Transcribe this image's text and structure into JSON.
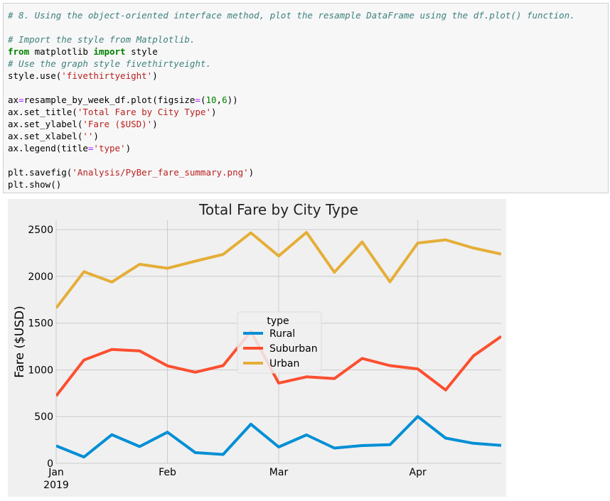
{
  "code": {
    "lines": [
      [
        {
          "t": "# 8. Using the object-oriented interface method, plot the resample DataFrame using the df.plot() function.",
          "c": "comment"
        }
      ],
      [],
      [
        {
          "t": "# Import the style from Matplotlib.",
          "c": "comment"
        }
      ],
      [
        {
          "t": "from",
          "c": "keyword"
        },
        {
          "t": " matplotlib ",
          "c": ""
        },
        {
          "t": "import",
          "c": "keyword"
        },
        {
          "t": " style",
          "c": ""
        }
      ],
      [
        {
          "t": "# Use the graph style fivethirtyeight.",
          "c": "comment"
        }
      ],
      [
        {
          "t": "style.use(",
          "c": ""
        },
        {
          "t": "'fivethirtyeight'",
          "c": "string"
        },
        {
          "t": ")",
          "c": ""
        }
      ],
      [],
      [
        {
          "t": "ax",
          "c": ""
        },
        {
          "t": "=",
          "c": "op"
        },
        {
          "t": "resample_by_week_df.plot(figsize",
          "c": ""
        },
        {
          "t": "=",
          "c": "op"
        },
        {
          "t": "(",
          "c": ""
        },
        {
          "t": "10",
          "c": "number"
        },
        {
          "t": ",",
          "c": ""
        },
        {
          "t": "6",
          "c": "number"
        },
        {
          "t": "))",
          "c": ""
        }
      ],
      [
        {
          "t": "ax.set_title(",
          "c": ""
        },
        {
          "t": "'Total Fare by City Type'",
          "c": "string"
        },
        {
          "t": ")",
          "c": ""
        }
      ],
      [
        {
          "t": "ax.set_ylabel(",
          "c": ""
        },
        {
          "t": "'Fare ($USD)'",
          "c": "string"
        },
        {
          "t": ")",
          "c": ""
        }
      ],
      [
        {
          "t": "ax.set_xlabel(",
          "c": ""
        },
        {
          "t": "''",
          "c": "string"
        },
        {
          "t": ")",
          "c": ""
        }
      ],
      [
        {
          "t": "ax.legend(title",
          "c": ""
        },
        {
          "t": "=",
          "c": "op"
        },
        {
          "t": "'type'",
          "c": "string"
        },
        {
          "t": ")",
          "c": ""
        }
      ],
      [],
      [
        {
          "t": "plt.savefig(",
          "c": ""
        },
        {
          "t": "'Analysis/PyBer_fare_summary.png'",
          "c": "string"
        },
        {
          "t": ")",
          "c": ""
        }
      ],
      [
        {
          "t": "plt.show()",
          "c": ""
        }
      ]
    ]
  },
  "chart_data": {
    "type": "line",
    "title": "Total Fare by City Type",
    "xlabel": "",
    "ylabel": "Fare ($USD)",
    "x": [
      "2019-01-06",
      "2019-01-13",
      "2019-01-20",
      "2019-01-27",
      "2019-02-03",
      "2019-02-10",
      "2019-02-17",
      "2019-02-24",
      "2019-03-03",
      "2019-03-10",
      "2019-03-17",
      "2019-03-24",
      "2019-03-31",
      "2019-04-07",
      "2019-04-14",
      "2019-04-21",
      "2019-04-28"
    ],
    "xlim": [
      "2019-01-06",
      "2019-04-28"
    ],
    "x_ticks": [
      {
        "date": "2019-01-06",
        "label": "Jan",
        "sublabel": "2019"
      },
      {
        "date": "2019-02-03",
        "label": "Feb"
      },
      {
        "date": "2019-03-03",
        "label": "Mar"
      },
      {
        "date": "2019-04-07",
        "label": "Apr"
      }
    ],
    "ylim": [
      0,
      2600
    ],
    "y_ticks": [
      0,
      500,
      1000,
      1500,
      2000,
      2500
    ],
    "grid": true,
    "background": "#f0f0f0",
    "legend": {
      "title": "type",
      "position": "center"
    },
    "series": [
      {
        "name": "Rural",
        "color": "#008fd5",
        "values": [
          187.92,
          67.65,
          306.0,
          179.69,
          333.08,
          115.05,
          95.06,
          419.06,
          175.14,
          303.94,
          163.39,
          189.76,
          199.42,
          501.24,
          269.79,
          214.14,
          191.85
        ]
      },
      {
        "name": "Suburban",
        "color": "#fc4f30",
        "values": [
          721.6,
          1105.13,
          1218.2,
          1203.28,
          1042.79,
          974.34,
          1045.5,
          1412.74,
          858.46,
          925.27,
          906.2,
          1122.2,
          1045.06,
          1010.73,
          784.82,
          1149.27,
          1357.75
        ]
      },
      {
        "name": "Urban",
        "color": "#e5ae38",
        "values": [
          1661.68,
          2050.43,
          1939.02,
          2129.51,
          2086.94,
          2162.64,
          2235.07,
          2466.29,
          2218.2,
          2470.93,
          2044.42,
          2368.37,
          1942.27,
          2356.7,
          2390.87,
          2303.8,
          2238.29
        ]
      }
    ]
  }
}
